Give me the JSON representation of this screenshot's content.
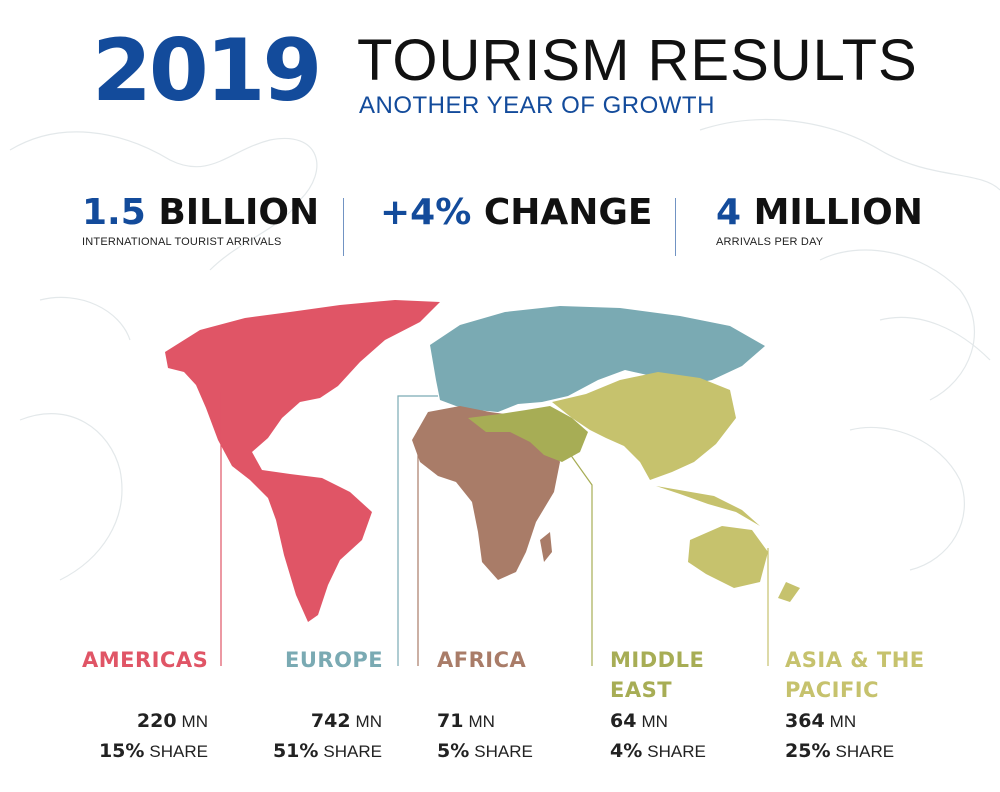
{
  "header": {
    "year": "2019",
    "title": "TOURISM RESULTS",
    "subtitle": "ANOTHER YEAR OF GROWTH"
  },
  "kpis": [
    {
      "num": "1.5",
      "word": "BILLION",
      "caption": "INTERNATIONAL TOURIST ARRIVALS"
    },
    {
      "num": "+4%",
      "word": "CHANGE",
      "caption": ""
    },
    {
      "num": "4",
      "word": "MILLION",
      "caption": "ARRIVALS PER DAY"
    }
  ],
  "regions": [
    {
      "name": "AMERICAS",
      "arrivals": "220",
      "arrivals_unit": "MN",
      "share": "15%",
      "share_unit": "SHARE"
    },
    {
      "name": "EUROPE",
      "arrivals": "742",
      "arrivals_unit": "MN",
      "share": "51%",
      "share_unit": "SHARE"
    },
    {
      "name": "AFRICA",
      "arrivals": "71",
      "arrivals_unit": "MN",
      "share": "5%",
      "share_unit": "SHARE"
    },
    {
      "name_line1": "MIDDLE",
      "name_line2": "EAST",
      "arrivals": "64",
      "arrivals_unit": "MN",
      "share": "4%",
      "share_unit": "SHARE"
    },
    {
      "name_line1": "ASIA & THE",
      "name_line2": "PACIFIC",
      "arrivals": "364",
      "arrivals_unit": "MN",
      "share": "25%",
      "share_unit": "SHARE"
    }
  ],
  "colors": {
    "brand_blue": "#134b9b",
    "americas": "#e05566",
    "europe": "#7aaab3",
    "africa": "#a97c68",
    "middle_east": "#a7ad55",
    "asia_pacific": "#c6c26d"
  }
}
